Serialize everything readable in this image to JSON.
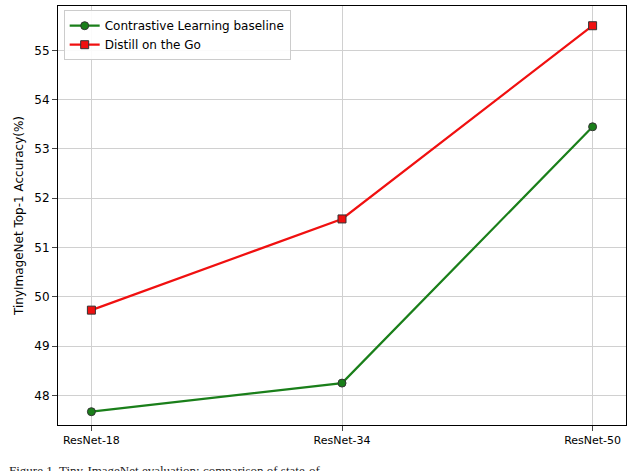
{
  "chart_data": {
    "type": "line",
    "y_label": "TinyImageNet Top-1 Accuracy(%)",
    "caption": "Figure 1. Tiny-ImageNet evaluation: comparison of state-of",
    "categories": [
      "ResNet-18",
      "ResNet-34",
      "ResNet-50"
    ],
    "series": [
      {
        "name": "Contrastive Learning baseline",
        "color": "#1a7f1a",
        "marker": "circle",
        "values": [
          47.67,
          48.25,
          53.45
        ]
      },
      {
        "name": "Distill on the Go",
        "color": "#f01010",
        "marker": "square",
        "values": [
          49.73,
          51.58,
          55.5
        ]
      }
    ],
    "ylim": [
      47.4,
      55.9
    ],
    "yticks": [
      48,
      49,
      50,
      51,
      52,
      53,
      54,
      55
    ],
    "grid": true,
    "legend": "upper left"
  }
}
